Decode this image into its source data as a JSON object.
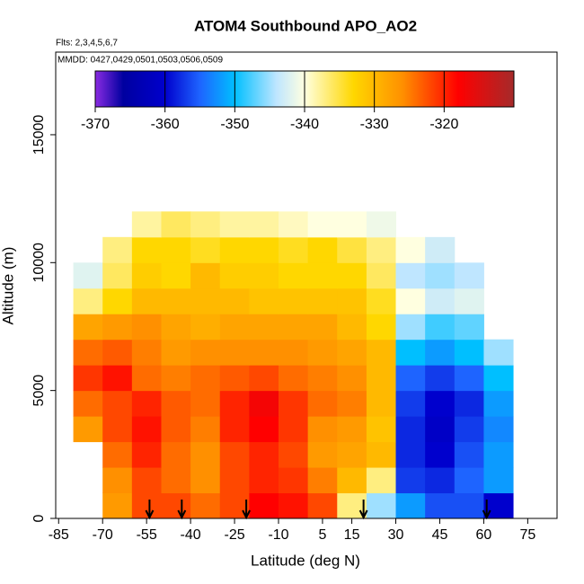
{
  "chart_data": {
    "type": "heatmap",
    "title": "ATOM4 Southbound APO_AO2",
    "subtitle": "Flts: 2,3,4,5,6,7",
    "annotation": "MMDD: 0427,0429,0501,0503,0506,0509",
    "x_label": "Latitude (deg N)",
    "y_label": "Altitude (m)",
    "x": [
      -75,
      -65,
      -55,
      -45,
      -35,
      -25,
      -15,
      -5,
      5,
      15,
      25,
      35,
      45,
      55,
      65
    ],
    "y": [
      500,
      1500,
      2500,
      3500,
      4500,
      5500,
      6500,
      7500,
      8500,
      9500,
      10500,
      11500
    ],
    "z": [
      [
        null,
        -327,
        -322,
        -322,
        -324,
        -322,
        -318,
        -319,
        -322,
        -337,
        -345,
        -352,
        -356,
        -356,
        -360
      ],
      [
        null,
        -326,
        -322,
        -324,
        -326,
        -322,
        -320,
        -321,
        -325,
        -330,
        -337,
        -357,
        -358,
        -355,
        -352
      ],
      [
        null,
        -324,
        -320,
        -324,
        -326,
        -322,
        -320,
        -322,
        -327,
        -328,
        -330,
        -358,
        -360,
        -356,
        -352
      ],
      [
        -327,
        -322,
        -319,
        -323,
        -325,
        -320,
        -318,
        -321,
        -326,
        -327,
        -331,
        -358,
        -361,
        -357,
        -353
      ],
      [
        -324,
        -322,
        -320,
        -323,
        -324,
        -320,
        -317,
        -321,
        -324,
        -325,
        -330,
        -357,
        -360,
        -358,
        -352
      ],
      [
        -321,
        -319,
        -324,
        -325,
        -324,
        -323,
        -322,
        -324,
        -325,
        -326,
        -330,
        -355,
        -357,
        -355,
        -350
      ],
      [
        -324,
        -323,
        -325,
        -327,
        -326,
        -326,
        -326,
        -326,
        -327,
        -328,
        -330,
        -350,
        -352,
        -350,
        -345
      ],
      [
        -328,
        -327,
        -326,
        -328,
        -329,
        -328,
        -328,
        -328,
        -328,
        -330,
        -333,
        -345,
        -348,
        -347,
        null
      ],
      [
        -337,
        -333,
        -330,
        -330,
        -330,
        -330,
        -331,
        -331,
        -331,
        -331,
        -334,
        -340,
        -343,
        -342,
        null
      ],
      [
        -342,
        -336,
        -332,
        -333,
        -330,
        -332,
        -332,
        -333,
        -333,
        -333,
        -336,
        -344,
        -345,
        -344,
        null
      ],
      [
        null,
        -337,
        -333,
        -333,
        -334,
        -333,
        -333,
        -334,
        -333,
        -335,
        -337,
        -340,
        -343,
        null,
        null
      ],
      [
        null,
        null,
        -338,
        -336,
        -337,
        -338,
        -338,
        -339,
        -340,
        -340,
        -341,
        null,
        null,
        null,
        null
      ]
    ],
    "markers": [
      -54,
      -43,
      -21,
      19,
      61
    ],
    "xlim": [
      -86,
      85
    ],
    "xticks": [
      -85,
      -70,
      -55,
      -40,
      -25,
      -10,
      5,
      15,
      30,
      45,
      60,
      75
    ],
    "ylim": [
      0,
      18230
    ],
    "yticks": [
      0,
      5000,
      10000,
      15000
    ],
    "clim": [
      -370,
      -310
    ],
    "cticks": [
      -370,
      -360,
      -350,
      -340,
      -330,
      -320
    ],
    "colorscale": [
      [
        -370,
        "#8a2be2"
      ],
      [
        -366,
        "#0000a0"
      ],
      [
        -360,
        "#0000cd"
      ],
      [
        -355,
        "#1e64ff"
      ],
      [
        -350,
        "#00bfff"
      ],
      [
        -344,
        "#bfe6ff"
      ],
      [
        -340,
        "#ffffe0"
      ],
      [
        -333,
        "#ffd700"
      ],
      [
        -326,
        "#ff9000"
      ],
      [
        -318,
        "#ff0000"
      ],
      [
        -310,
        "#a52a2a"
      ]
    ]
  }
}
